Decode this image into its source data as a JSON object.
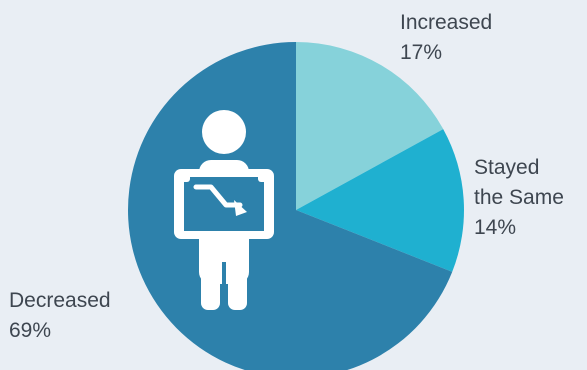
{
  "chart_data": {
    "type": "pie",
    "categories": [
      "Increased",
      "Stayed the Same",
      "Decreased"
    ],
    "values": [
      17,
      14,
      69
    ],
    "value_suffix": "%",
    "labels": {
      "increased": {
        "name": "Increased",
        "value": "17%"
      },
      "stayed": {
        "name_line1": "Stayed",
        "name_line2": "the Same",
        "value": "14%"
      },
      "decreased": {
        "name": "Decreased",
        "value": "69%"
      }
    },
    "colors": [
      "#86d2da",
      "#1fb0d0",
      "#2d81ab"
    ],
    "title": "",
    "legend": "none"
  },
  "illustration": {
    "icon": "person-holding-declining-chart-icon",
    "figure_color": "#ffffff",
    "board_color": "#2d81ab"
  },
  "background_color": "#e9eef4"
}
